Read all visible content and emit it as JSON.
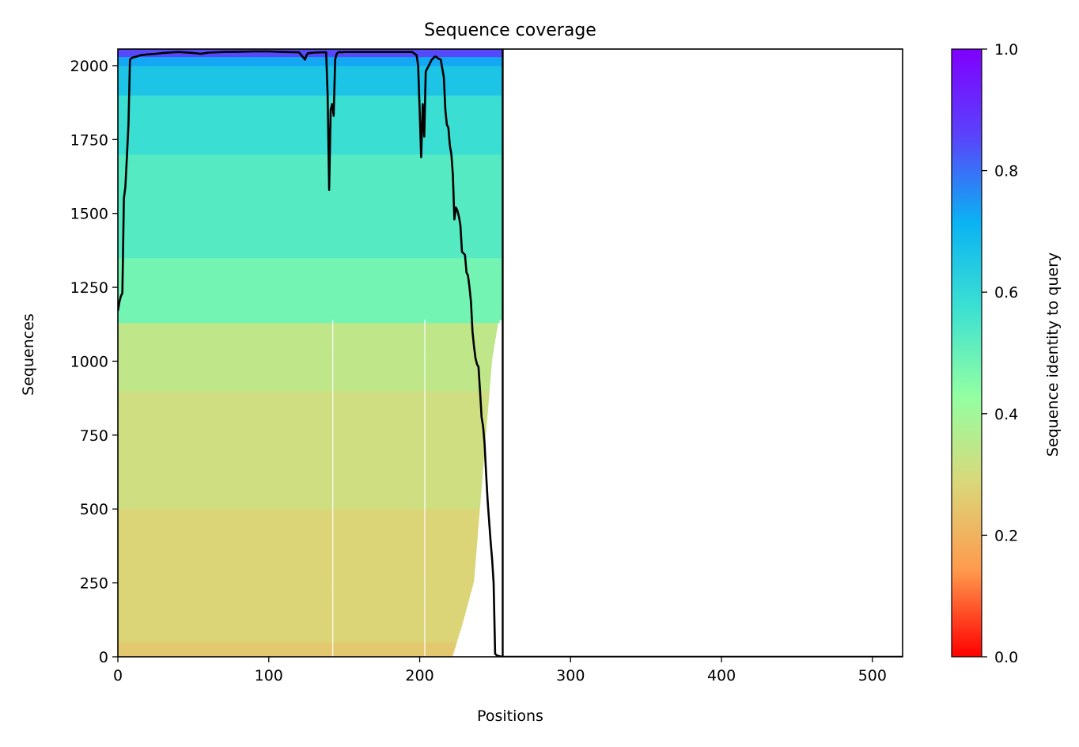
{
  "chart_data": {
    "type": "heatmap",
    "title": "Sequence coverage",
    "xlabel": "Positions",
    "ylabel": "Sequences",
    "xlim": [
      0,
      520
    ],
    "ylim": [
      0,
      2056
    ],
    "grid": false,
    "x_ticks": [
      0,
      100,
      200,
      300,
      400,
      500
    ],
    "y_ticks": [
      0,
      250,
      500,
      750,
      1000,
      1250,
      1500,
      1750,
      2000
    ],
    "colorbar": {
      "label": "Sequence identity to query",
      "range": [
        0,
        1
      ],
      "ticks": [
        "0.0",
        "0.2",
        "0.4",
        "0.6",
        "0.8",
        "1.0"
      ],
      "colormap": "rainbow_r",
      "colors": [
        "#ff0000",
        "#ff9a4d",
        "#dad77a",
        "#93ffa2",
        "#3de1d1",
        "#0ab3f3",
        "#5a43fb",
        "#7f00ff"
      ]
    },
    "coverage_block": {
      "query_length": 255,
      "identity_bands": [
        {
          "rows": [
            0,
            50
          ],
          "identity": 0.25
        },
        {
          "rows": [
            50,
            500
          ],
          "identity": 0.28
        },
        {
          "rows": [
            500,
            900
          ],
          "identity": 0.31
        },
        {
          "rows": [
            900,
            1130
          ],
          "identity": 0.34
        },
        {
          "rows": [
            1130,
            1350
          ],
          "identity": 0.48
        },
        {
          "rows": [
            1350,
            1700
          ],
          "identity": 0.53
        },
        {
          "rows": [
            1700,
            1900
          ],
          "identity": 0.58
        },
        {
          "rows": [
            1900,
            2000
          ],
          "identity": 0.66
        },
        {
          "rows": [
            2000,
            2030
          ],
          "identity": 0.73
        },
        {
          "rows": [
            2030,
            2056
          ],
          "identity": 0.85
        }
      ],
      "row_end_profile": [
        {
          "row": 0,
          "end": 222
        },
        {
          "row": 100,
          "end": 228
        },
        {
          "row": 250,
          "end": 236
        },
        {
          "row": 500,
          "end": 240
        },
        {
          "row": 750,
          "end": 244
        },
        {
          "row": 1000,
          "end": 248
        },
        {
          "row": 1125,
          "end": 252
        },
        {
          "row": 1140,
          "end": 255
        },
        {
          "row": 2056,
          "end": 255
        }
      ],
      "gap_columns": [
        142,
        203
      ]
    },
    "series": [
      {
        "type": "line",
        "color": "#000000",
        "x": [
          0,
          1,
          2,
          3,
          4,
          5,
          6,
          7,
          8,
          9,
          10,
          12,
          15,
          20,
          25,
          30,
          40,
          50,
          55,
          60,
          70,
          80,
          90,
          100,
          110,
          120,
          124,
          125,
          126,
          130,
          135,
          138,
          139,
          140,
          141,
          142,
          143,
          144,
          145,
          146,
          147,
          148,
          150,
          160,
          170,
          180,
          190,
          195,
          198,
          199,
          200,
          201,
          202,
          203,
          204,
          205,
          206,
          208,
          210,
          211,
          212,
          214,
          216,
          217,
          218,
          219,
          220,
          221,
          222,
          223,
          224,
          225,
          226,
          227,
          228,
          230,
          231,
          232,
          233,
          234,
          235,
          236,
          237,
          238,
          239,
          240,
          241,
          242,
          243,
          244,
          245,
          246,
          247,
          248,
          249,
          250,
          251,
          252,
          253,
          254,
          255
        ],
        "y": [
          1170,
          1200,
          1220,
          1230,
          1550,
          1590,
          1690,
          1800,
          2020,
          2025,
          2028,
          2030,
          2035,
          2038,
          2040,
          2043,
          2046,
          2043,
          2040,
          2044,
          2046,
          2047,
          2048,
          2048,
          2046,
          2045,
          2020,
          2035,
          2042,
          2044,
          2045,
          2045,
          1900,
          1580,
          1850,
          1870,
          1830,
          2020,
          2040,
          2045,
          2046,
          2045,
          2046,
          2046,
          2046,
          2046,
          2046,
          2046,
          2035,
          2000,
          1850,
          1690,
          1870,
          1760,
          1980,
          1990,
          2000,
          2020,
          2030,
          2030,
          2025,
          2020,
          1960,
          1850,
          1800,
          1790,
          1730,
          1700,
          1630,
          1480,
          1520,
          1510,
          1490,
          1460,
          1370,
          1360,
          1300,
          1290,
          1250,
          1200,
          1100,
          1050,
          1010,
          990,
          980,
          900,
          810,
          780,
          720,
          620,
          530,
          460,
          390,
          330,
          250,
          10,
          5,
          3,
          2,
          1,
          0
        ]
      }
    ]
  }
}
